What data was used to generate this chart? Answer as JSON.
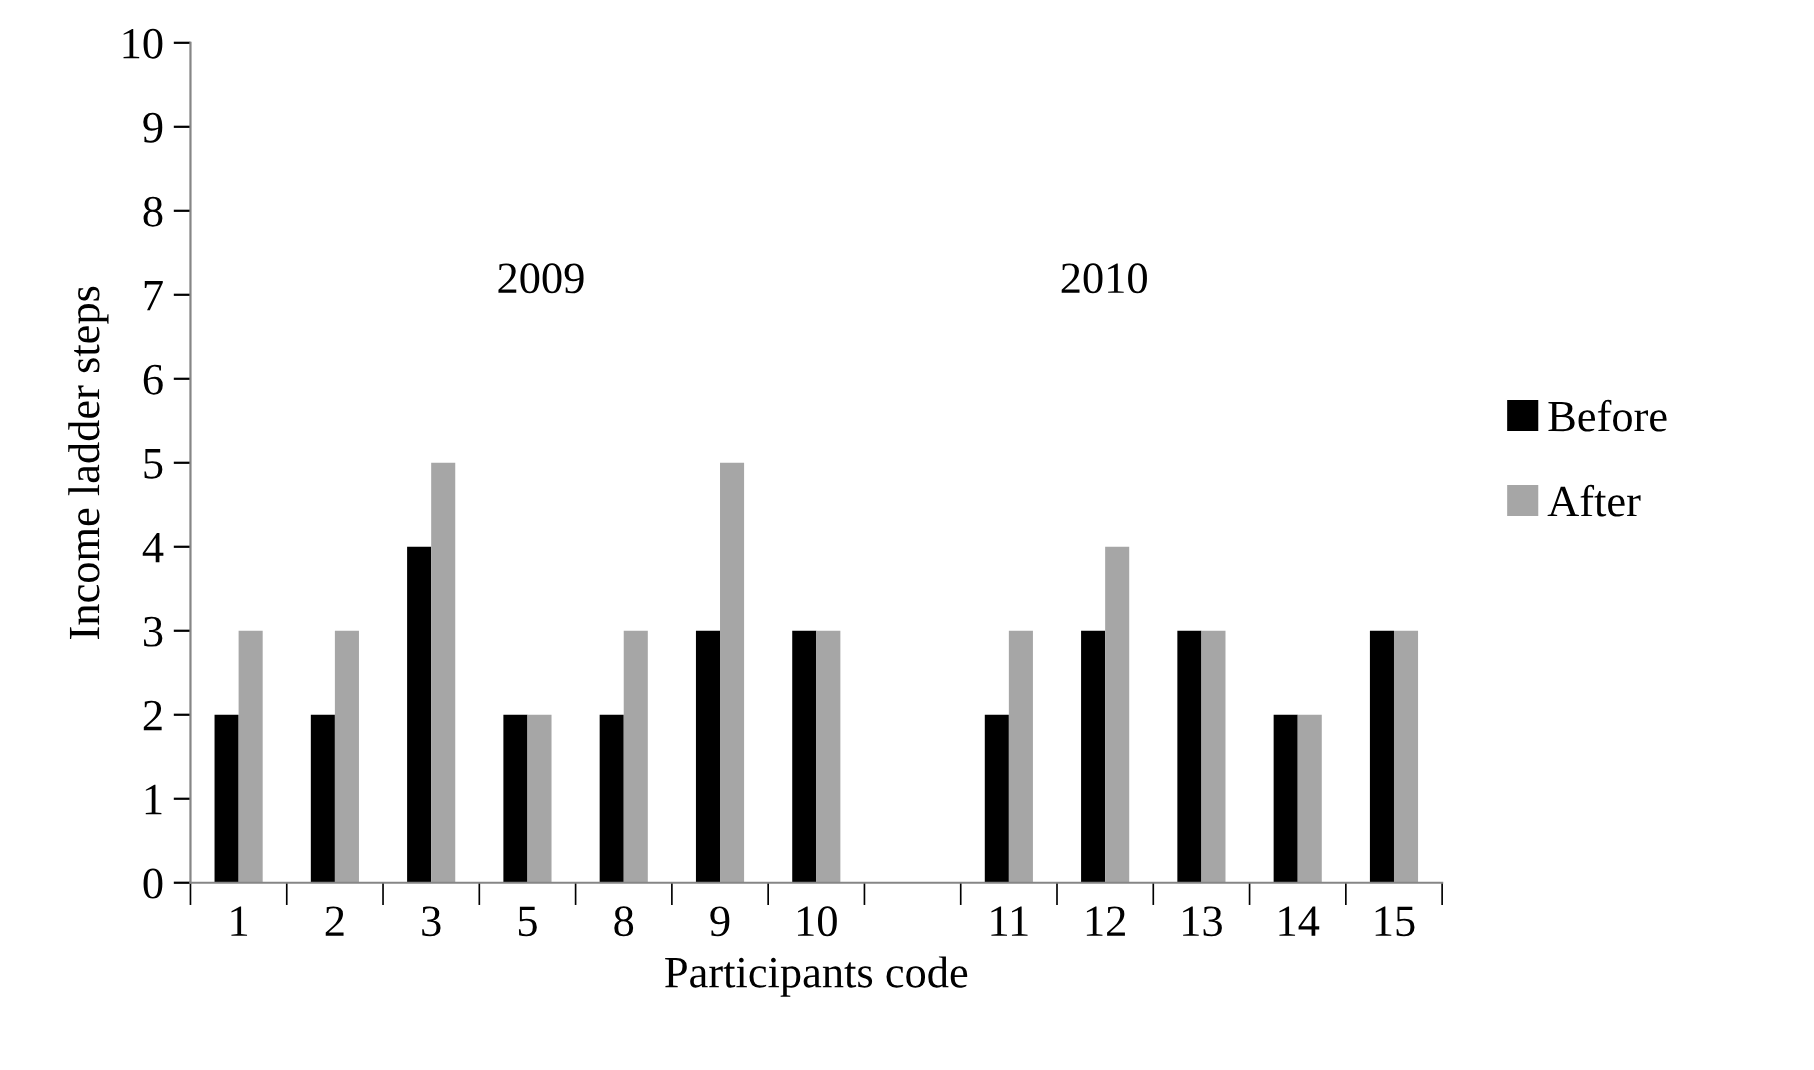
{
  "chart_data": {
    "type": "bar",
    "xlabel": "Participants code",
    "ylabel": "Income ladder steps",
    "categories": [
      "1",
      "2",
      "3",
      "5",
      "8",
      "9",
      "10",
      null,
      "11",
      "12",
      "13",
      "14",
      "15"
    ],
    "series": [
      {
        "name": "Before",
        "color": "#000000",
        "values": [
          2,
          2,
          4,
          2,
          2,
          3,
          3,
          null,
          2,
          3,
          3,
          2,
          3
        ]
      },
      {
        "name": "After",
        "color": "#a6a6a6",
        "values": [
          3,
          3,
          5,
          2,
          3,
          5,
          3,
          null,
          3,
          4,
          3,
          2,
          3
        ]
      }
    ],
    "ylim": [
      0,
      10
    ],
    "yticks": [
      0,
      1,
      2,
      3,
      4,
      5,
      6,
      7,
      8,
      9,
      10
    ],
    "grid": false,
    "legend": "right",
    "annotations": [
      "2009",
      "2010"
    ]
  }
}
